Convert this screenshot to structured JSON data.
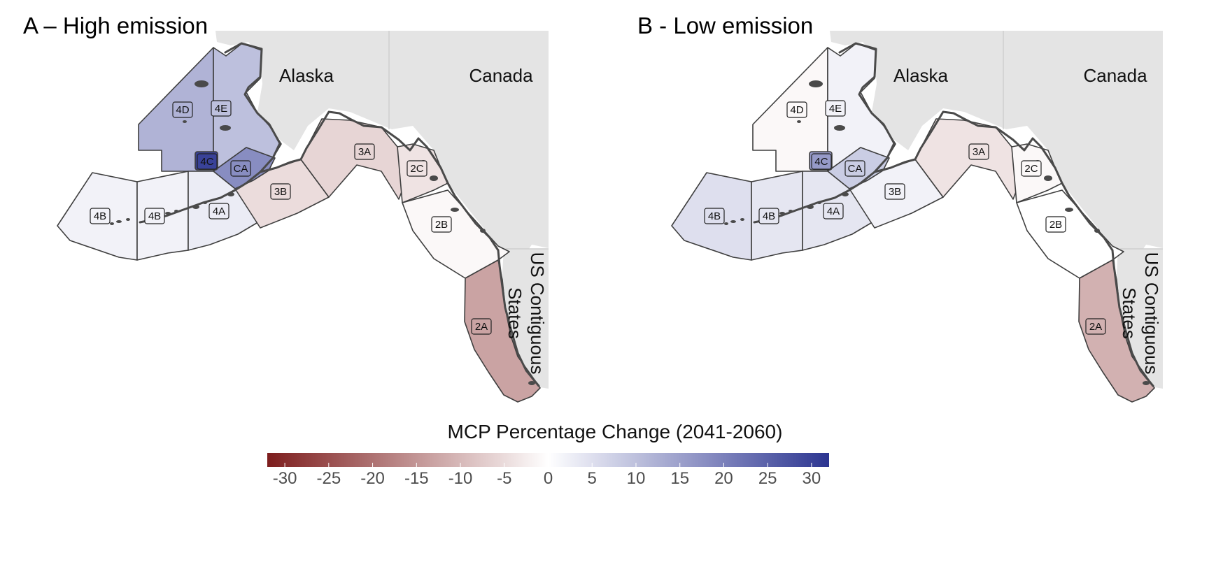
{
  "panels": [
    {
      "id": "a",
      "title": "A – High emission",
      "country_labels": {
        "alaska": "Alaska",
        "canada": "Canada",
        "us_line1": "US Contiguous",
        "us_line2": "States"
      },
      "regions": {
        "4D": {
          "label": "4D",
          "value": 12
        },
        "4E": {
          "label": "4E",
          "value": 10
        },
        "4C": {
          "label": "4C",
          "value": 30
        },
        "CA": {
          "label": "CA",
          "value": 18
        },
        "4B_west": {
          "label": "4B",
          "value": 2
        },
        "4B_east": {
          "label": "4B",
          "value": 2
        },
        "4A": {
          "label": "4A",
          "value": 3
        },
        "3B": {
          "label": "3B",
          "value": -5
        },
        "3A": {
          "label": "3A",
          "value": -6
        },
        "2C": {
          "label": "2C",
          "value": -4
        },
        "2B": {
          "label": "2B",
          "value": -1
        },
        "2A": {
          "label": "2A",
          "value": -13
        }
      }
    },
    {
      "id": "b",
      "title": "B - Low emission",
      "country_labels": {
        "alaska": "Alaska",
        "canada": "Canada",
        "us_line1": "US Contiguous",
        "us_line2": "States"
      },
      "regions": {
        "4D": {
          "label": "4D",
          "value": -1
        },
        "4E": {
          "label": "4E",
          "value": 2
        },
        "4C": {
          "label": "4C",
          "value": 16
        },
        "CA": {
          "label": "CA",
          "value": 8
        },
        "4B_west": {
          "label": "4B",
          "value": 5
        },
        "4B_east": {
          "label": "4B",
          "value": 4
        },
        "4A": {
          "label": "4A",
          "value": 4
        },
        "3B": {
          "label": "3B",
          "value": 2
        },
        "3A": {
          "label": "3A",
          "value": -4
        },
        "2C": {
          "label": "2C",
          "value": -1
        },
        "2B": {
          "label": "2B",
          "value": 0
        },
        "2A": {
          "label": "2A",
          "value": -11
        }
      }
    }
  ],
  "legend": {
    "title": "MCP Percentage Change (2041-2060)",
    "min": -32,
    "max": 32,
    "ticks": [
      -30,
      -25,
      -20,
      -15,
      -10,
      -5,
      0,
      5,
      10,
      15,
      20,
      25,
      30
    ],
    "colors": {
      "low": "#7d1d1d",
      "mid": "#ffffff",
      "high": "#2c3591"
    }
  }
}
